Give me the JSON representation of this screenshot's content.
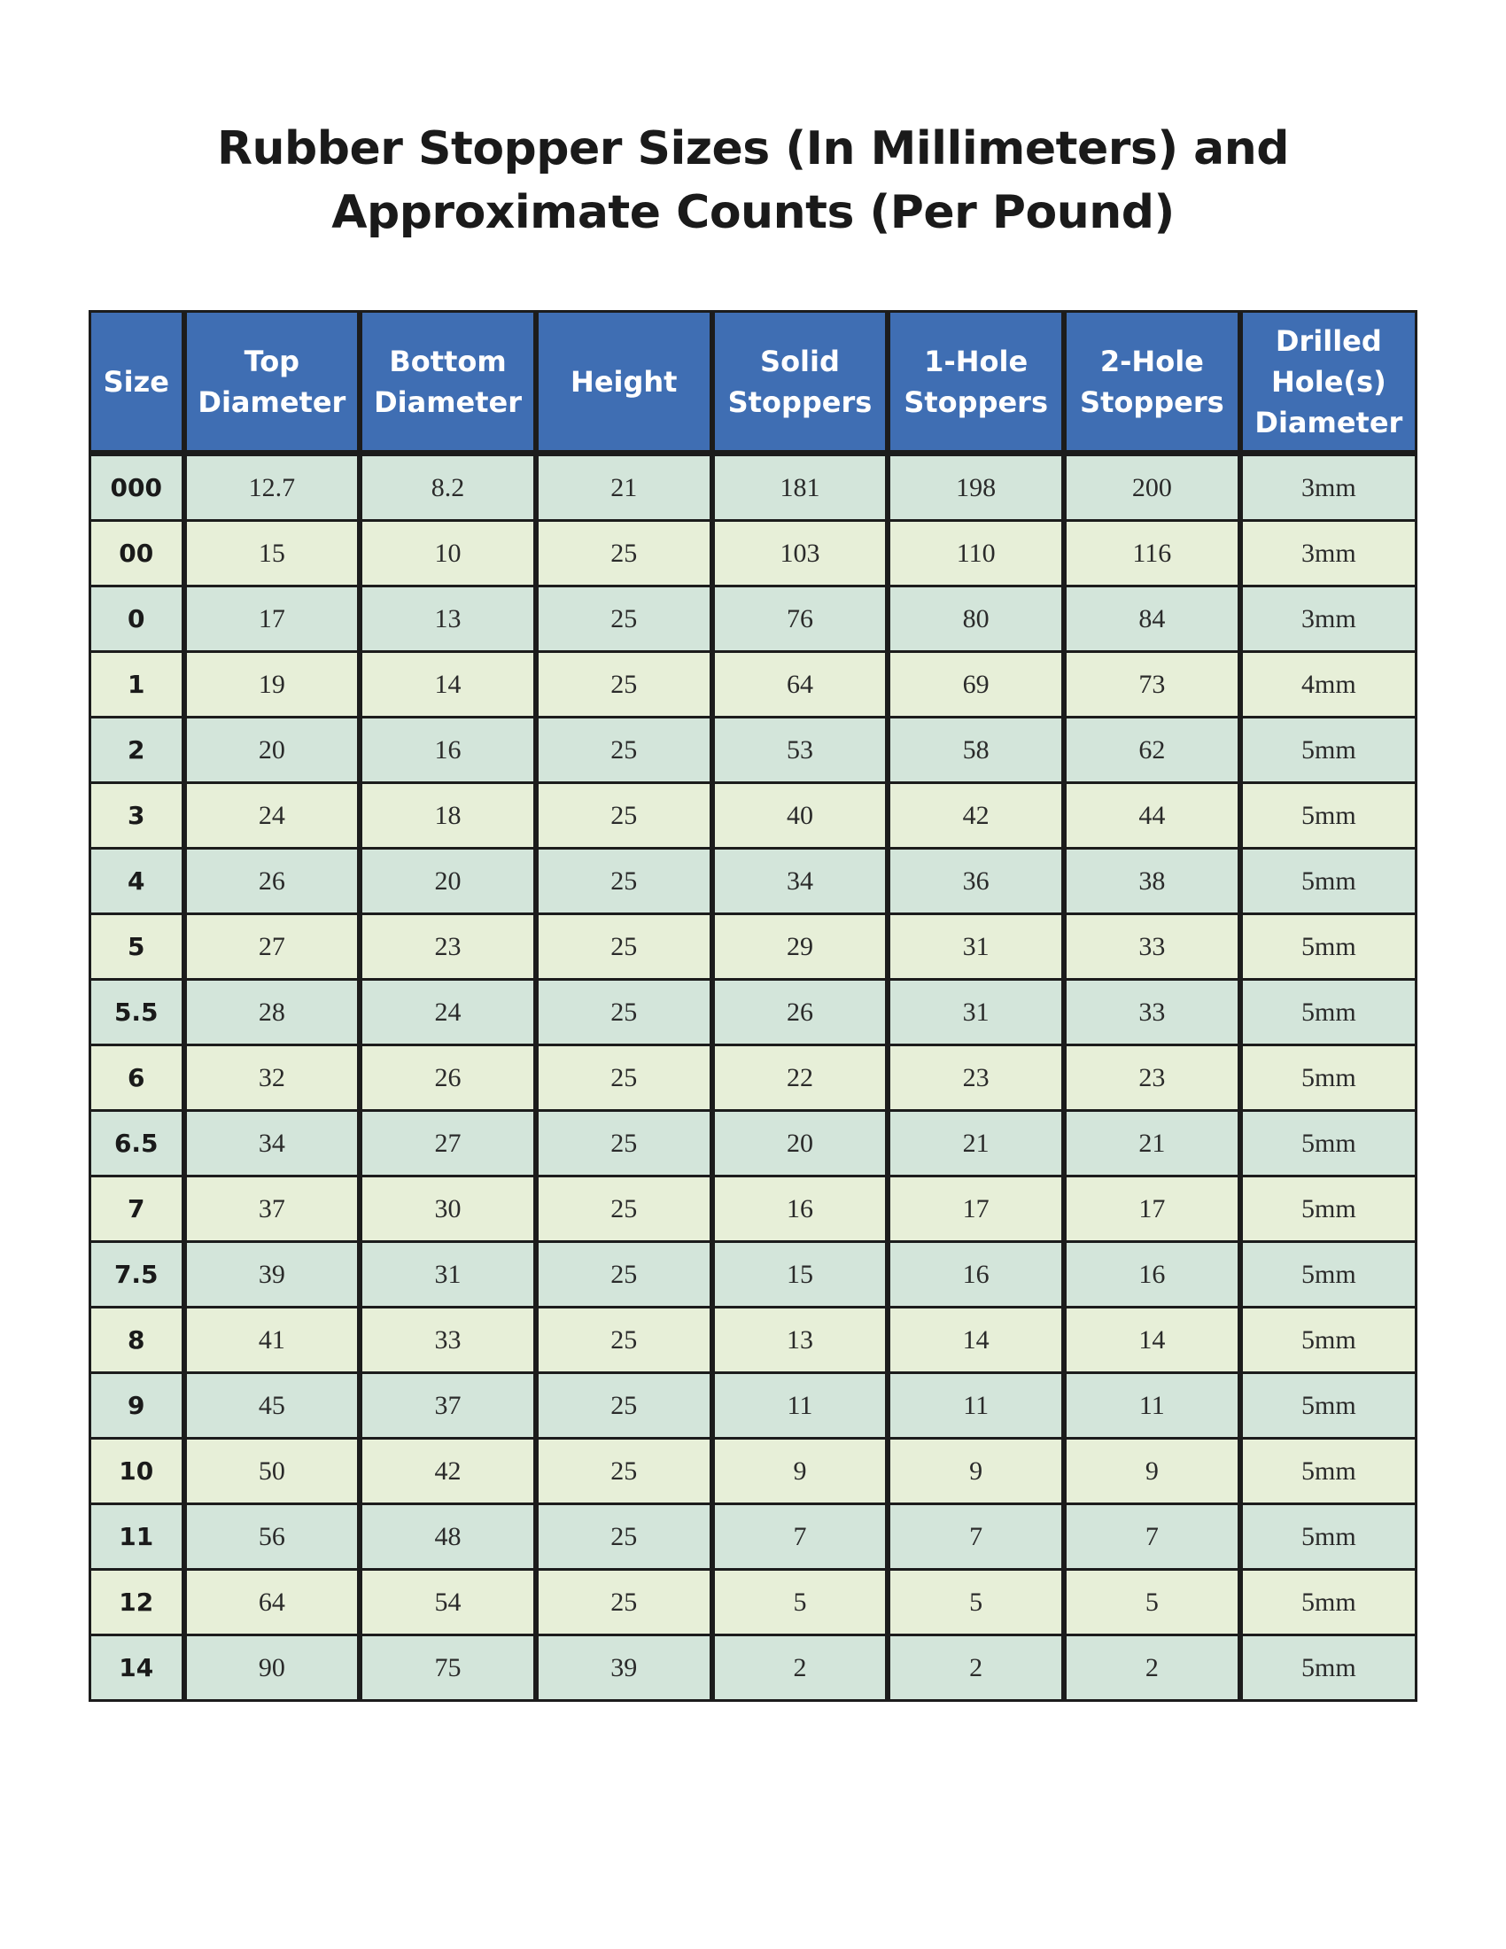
{
  "title_line1": "Rubber Stopper Sizes (In Millimeters) and",
  "title_line2": "Approximate Counts (Per Pound)",
  "colors": {
    "header": "#3f6eb3",
    "row_odd": "#d3e5da",
    "row_even": "#e7efd8"
  },
  "headers": [
    [
      "Size"
    ],
    [
      "Top",
      "Diameter"
    ],
    [
      "Bottom",
      "Diameter"
    ],
    [
      "Height"
    ],
    [
      "Solid",
      "Stoppers"
    ],
    [
      "1-Hole",
      "Stoppers"
    ],
    [
      "2-Hole",
      "Stoppers"
    ],
    [
      "Drilled",
      "Hole(s)",
      "Diameter"
    ]
  ],
  "rows": [
    [
      "000",
      "12.7",
      "8.2",
      "21",
      "181",
      "198",
      "200",
      "3mm"
    ],
    [
      "00",
      "15",
      "10",
      "25",
      "103",
      "110",
      "116",
      "3mm"
    ],
    [
      "0",
      "17",
      "13",
      "25",
      "76",
      "80",
      "84",
      "3mm"
    ],
    [
      "1",
      "19",
      "14",
      "25",
      "64",
      "69",
      "73",
      "4mm"
    ],
    [
      "2",
      "20",
      "16",
      "25",
      "53",
      "58",
      "62",
      "5mm"
    ],
    [
      "3",
      "24",
      "18",
      "25",
      "40",
      "42",
      "44",
      "5mm"
    ],
    [
      "4",
      "26",
      "20",
      "25",
      "34",
      "36",
      "38",
      "5mm"
    ],
    [
      "5",
      "27",
      "23",
      "25",
      "29",
      "31",
      "33",
      "5mm"
    ],
    [
      "5.5",
      "28",
      "24",
      "25",
      "26",
      "31",
      "33",
      "5mm"
    ],
    [
      "6",
      "32",
      "26",
      "25",
      "22",
      "23",
      "23",
      "5mm"
    ],
    [
      "6.5",
      "34",
      "27",
      "25",
      "20",
      "21",
      "21",
      "5mm"
    ],
    [
      "7",
      "37",
      "30",
      "25",
      "16",
      "17",
      "17",
      "5mm"
    ],
    [
      "7.5",
      "39",
      "31",
      "25",
      "15",
      "16",
      "16",
      "5mm"
    ],
    [
      "8",
      "41",
      "33",
      "25",
      "13",
      "14",
      "14",
      "5mm"
    ],
    [
      "9",
      "45",
      "37",
      "25",
      "11",
      "11",
      "11",
      "5mm"
    ],
    [
      "10",
      "50",
      "42",
      "25",
      "9",
      "9",
      "9",
      "5mm"
    ],
    [
      "11",
      "56",
      "48",
      "25",
      "7",
      "7",
      "7",
      "5mm"
    ],
    [
      "12",
      "64",
      "54",
      "25",
      "5",
      "5",
      "5",
      "5mm"
    ],
    [
      "14",
      "90",
      "75",
      "39",
      "2",
      "2",
      "2",
      "5mm"
    ]
  ]
}
